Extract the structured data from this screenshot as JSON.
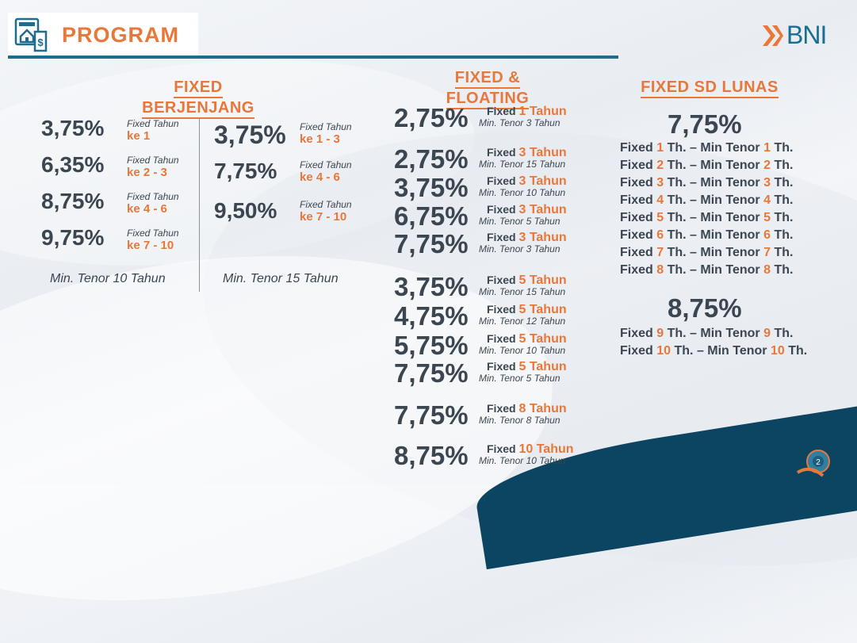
{
  "header": {
    "title": "PROGRAM",
    "logo_text": "BNI"
  },
  "columns": {
    "fixed_berjenjang": {
      "title_line1": "FIXED",
      "title_line2": "BERJENJANG",
      "left": [
        {
          "rate": "3,75%",
          "label": "Fixed Tahun",
          "period": "ke 1"
        },
        {
          "rate": "6,35%",
          "label": "Fixed Tahun",
          "period": "ke 2 - 3"
        },
        {
          "rate": "8,75%",
          "label": "Fixed Tahun",
          "period": "ke 4 - 6"
        },
        {
          "rate": "9,75%",
          "label": "Fixed Tahun",
          "period": "ke 7 - 10"
        }
      ],
      "left_tenor": "Min. Tenor 10 Tahun",
      "right": [
        {
          "rate": "3,75%",
          "label": "Fixed Tahun",
          "period": "ke 1 - 3"
        },
        {
          "rate": "7,75%",
          "label": "Fixed Tahun",
          "period": "ke 4 - 6"
        },
        {
          "rate": "9,50%",
          "label": "Fixed Tahun",
          "period": "ke 7 - 10"
        }
      ],
      "right_tenor": "Min. Tenor 15 Tahun"
    },
    "fixed_floating": {
      "title_line1": "FIXED &",
      "title_line2": "FLOATING",
      "rows": [
        {
          "rate": "2,75%",
          "fixed": "Fixed",
          "years": "1 Tahun",
          "tenor": "Min. Tenor 3 Tahun"
        },
        {
          "rate": "2,75%",
          "fixed": "Fixed",
          "years": "3 Tahun",
          "tenor": "Min. Tenor 15 Tahun"
        },
        {
          "rate": "3,75%",
          "fixed": "Fixed",
          "years": "3 Tahun",
          "tenor": "Min. Tenor 10 Tahun"
        },
        {
          "rate": "6,75%",
          "fixed": "Fixed",
          "years": "3 Tahun",
          "tenor": "Min. Tenor 5 Tahun"
        },
        {
          "rate": "7,75%",
          "fixed": "Fixed",
          "years": "3 Tahun",
          "tenor": "Min. Tenor 3 Tahun"
        },
        {
          "rate": "3,75%",
          "fixed": "Fixed",
          "years": "5 Tahun",
          "tenor": "Min. Tenor 15 Tahun"
        },
        {
          "rate": "4,75%",
          "fixed": "Fixed",
          "years": "5 Tahun",
          "tenor": "Min. Tenor 12 Tahun"
        },
        {
          "rate": "5,75%",
          "fixed": "Fixed",
          "years": "5 Tahun",
          "tenor": "Min. Tenor 10 Tahun"
        },
        {
          "rate": "7,75%",
          "fixed": "Fixed",
          "years": "5 Tahun",
          "tenor": "Min. Tenor 5 Tahun"
        },
        {
          "rate": "7,75%",
          "fixed": "Fixed",
          "years": "8 Tahun",
          "tenor": "Min. Tenor 8 Tahun"
        },
        {
          "rate": "8,75%",
          "fixed": "Fixed",
          "years": "10 Tahun",
          "tenor": "Min. Tenor 10 Tahun"
        }
      ]
    },
    "fixed_sd_lunas": {
      "title": "FIXED SD LUNAS",
      "group1_rate": "7,75%",
      "group1": [
        {
          "a": "Fixed",
          "n1": "1",
          "b": "Th. – Min Tenor",
          "n2": "1",
          "c": "Th."
        },
        {
          "a": "Fixed",
          "n1": "2",
          "b": "Th. – Min Tenor",
          "n2": "2",
          "c": "Th."
        },
        {
          "a": "Fixed",
          "n1": "3",
          "b": "Th. – Min Tenor",
          "n2": "3",
          "c": "Th."
        },
        {
          "a": "Fixed",
          "n1": "4",
          "b": "Th. – Min Tenor",
          "n2": "4",
          "c": "Th."
        },
        {
          "a": "Fixed",
          "n1": "5",
          "b": "Th. – Min Tenor",
          "n2": "5",
          "c": "Th."
        },
        {
          "a": "Fixed",
          "n1": "6",
          "b": "Th. – Min Tenor",
          "n2": "6",
          "c": "Th."
        },
        {
          "a": "Fixed",
          "n1": "7",
          "b": "Th. – Min Tenor",
          "n2": "7",
          "c": "Th."
        },
        {
          "a": "Fixed",
          "n1": "8",
          "b": "Th. – Min Tenor",
          "n2": "8",
          "c": "Th."
        }
      ],
      "group2_rate": "8,75%",
      "group2": [
        {
          "a": "Fixed",
          "n1": "9",
          "b": "Th. – Min Tenor",
          "n2": "9",
          "c": "Th."
        },
        {
          "a": "Fixed",
          "n1": "10",
          "b": "Th. – Min Tenor",
          "n2": "10",
          "c": "Th."
        }
      ]
    }
  },
  "page_badge": "2",
  "colors": {
    "accent": "#e8773a",
    "primary": "#1f6c8c",
    "text": "#3b4650"
  }
}
